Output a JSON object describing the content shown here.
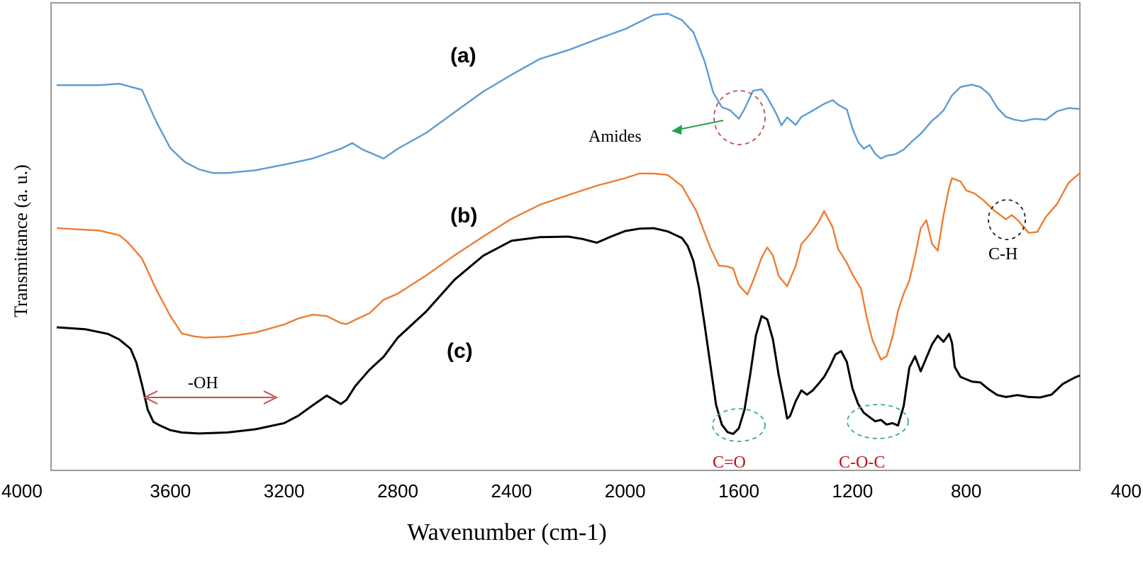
{
  "chart_data": {
    "type": "line",
    "xlabel": "Wavenumber (cm-1)",
    "ylabel": "Transmittance (a. u.)",
    "xlim": [
      4000,
      400
    ],
    "x_reversed": true,
    "y_units": "arbitrary, curves vertically offset",
    "ylim": [
      0,
      100
    ],
    "grid": false,
    "x_ticks": [
      "4000",
      "3600",
      "3200",
      "2800",
      "2400",
      "2000",
      "1600",
      "1200",
      "800",
      "400"
    ],
    "series": [
      {
        "name": "(a)",
        "color": "#5B9BD5",
        "points": [
          [
            4000,
            82.4
          ],
          [
            3850,
            82.4
          ],
          [
            3780,
            82.7
          ],
          [
            3700,
            81.4
          ],
          [
            3680,
            78.6
          ],
          [
            3650,
            74.6
          ],
          [
            3600,
            68.9
          ],
          [
            3550,
            66.0
          ],
          [
            3500,
            64.4
          ],
          [
            3450,
            63.6
          ],
          [
            3400,
            63.6
          ],
          [
            3300,
            64.2
          ],
          [
            3200,
            65.4
          ],
          [
            3100,
            66.7
          ],
          [
            3000,
            68.8
          ],
          [
            2960,
            70.0
          ],
          [
            2920,
            68.5
          ],
          [
            2880,
            67.5
          ],
          [
            2850,
            66.7
          ],
          [
            2800,
            68.8
          ],
          [
            2700,
            72.2
          ],
          [
            2600,
            76.6
          ],
          [
            2500,
            81.0
          ],
          [
            2400,
            84.6
          ],
          [
            2300,
            88.0
          ],
          [
            2200,
            89.9
          ],
          [
            2100,
            92.2
          ],
          [
            2000,
            94.4
          ],
          [
            1950,
            95.9
          ],
          [
            1900,
            97.4
          ],
          [
            1850,
            97.7
          ],
          [
            1800,
            96.3
          ],
          [
            1760,
            93.7
          ],
          [
            1720,
            87.4
          ],
          [
            1690,
            80.8
          ],
          [
            1660,
            77.7
          ],
          [
            1630,
            77.0
          ],
          [
            1600,
            75.2
          ],
          [
            1580,
            77.3
          ],
          [
            1550,
            81.2
          ],
          [
            1520,
            81.5
          ],
          [
            1500,
            79.8
          ],
          [
            1470,
            76.5
          ],
          [
            1450,
            73.8
          ],
          [
            1430,
            75.5
          ],
          [
            1400,
            73.9
          ],
          [
            1380,
            75.6
          ],
          [
            1350,
            76.6
          ],
          [
            1300,
            78.4
          ],
          [
            1270,
            79.2
          ],
          [
            1250,
            78.2
          ],
          [
            1220,
            77.2
          ],
          [
            1200,
            73.1
          ],
          [
            1180,
            70.2
          ],
          [
            1160,
            68.8
          ],
          [
            1140,
            69.6
          ],
          [
            1120,
            67.7
          ],
          [
            1100,
            66.7
          ],
          [
            1080,
            67.3
          ],
          [
            1050,
            67.6
          ],
          [
            1020,
            68.6
          ],
          [
            990,
            70.4
          ],
          [
            960,
            72.0
          ],
          [
            920,
            74.8
          ],
          [
            900,
            75.8
          ],
          [
            880,
            77.0
          ],
          [
            850,
            80.2
          ],
          [
            820,
            82.0
          ],
          [
            780,
            82.5
          ],
          [
            750,
            82.0
          ],
          [
            720,
            80.5
          ],
          [
            690,
            77.5
          ],
          [
            660,
            75.6
          ],
          [
            630,
            75.0
          ],
          [
            600,
            74.7
          ],
          [
            560,
            75.2
          ],
          [
            520,
            75.0
          ],
          [
            480,
            76.8
          ],
          [
            440,
            77.5
          ],
          [
            400,
            77.3
          ]
        ]
      },
      {
        "name": "(b)",
        "color": "#ED7D31",
        "points": [
          [
            4000,
            51.8
          ],
          [
            3850,
            51.3
          ],
          [
            3780,
            50.3
          ],
          [
            3750,
            48.8
          ],
          [
            3700,
            45.3
          ],
          [
            3650,
            38.7
          ],
          [
            3600,
            33.0
          ],
          [
            3560,
            29.3
          ],
          [
            3520,
            28.7
          ],
          [
            3480,
            28.4
          ],
          [
            3400,
            28.6
          ],
          [
            3300,
            29.5
          ],
          [
            3200,
            31.2
          ],
          [
            3150,
            32.5
          ],
          [
            3100,
            33.3
          ],
          [
            3050,
            33.0
          ],
          [
            3000,
            31.5
          ],
          [
            2980,
            31.3
          ],
          [
            2950,
            32.2
          ],
          [
            2900,
            33.6
          ],
          [
            2850,
            36.5
          ],
          [
            2800,
            37.8
          ],
          [
            2700,
            41.7
          ],
          [
            2600,
            46.0
          ],
          [
            2500,
            50.0
          ],
          [
            2400,
            53.8
          ],
          [
            2300,
            56.8
          ],
          [
            2200,
            58.9
          ],
          [
            2100,
            60.9
          ],
          [
            2000,
            62.5
          ],
          [
            1950,
            63.5
          ],
          [
            1900,
            63.5
          ],
          [
            1850,
            63.2
          ],
          [
            1800,
            60.8
          ],
          [
            1750,
            55.5
          ],
          [
            1700,
            47.6
          ],
          [
            1670,
            43.8
          ],
          [
            1640,
            43.6
          ],
          [
            1620,
            43.2
          ],
          [
            1600,
            39.6
          ],
          [
            1570,
            37.6
          ],
          [
            1550,
            40.5
          ],
          [
            1520,
            45.5
          ],
          [
            1500,
            47.7
          ],
          [
            1480,
            46.0
          ],
          [
            1460,
            41.6
          ],
          [
            1430,
            39.4
          ],
          [
            1400,
            43.7
          ],
          [
            1380,
            48.4
          ],
          [
            1350,
            50.5
          ],
          [
            1320,
            53.0
          ],
          [
            1300,
            55.5
          ],
          [
            1270,
            52.0
          ],
          [
            1250,
            47.3
          ],
          [
            1220,
            44.4
          ],
          [
            1200,
            41.9
          ],
          [
            1170,
            38.8
          ],
          [
            1150,
            32.7
          ],
          [
            1130,
            27.9
          ],
          [
            1100,
            23.7
          ],
          [
            1080,
            24.4
          ],
          [
            1060,
            28.4
          ],
          [
            1040,
            34.1
          ],
          [
            1020,
            37.8
          ],
          [
            1000,
            40.6
          ],
          [
            980,
            45.8
          ],
          [
            960,
            51.8
          ],
          [
            940,
            53.5
          ],
          [
            920,
            48.4
          ],
          [
            900,
            47.0
          ],
          [
            880,
            54.5
          ],
          [
            860,
            60.5
          ],
          [
            850,
            62.5
          ],
          [
            820,
            61.8
          ],
          [
            800,
            59.9
          ],
          [
            770,
            59.2
          ],
          [
            740,
            57.8
          ],
          [
            700,
            55.5
          ],
          [
            680,
            54.6
          ],
          [
            660,
            53.7
          ],
          [
            640,
            54.6
          ],
          [
            620,
            53.6
          ],
          [
            580,
            50.8
          ],
          [
            550,
            51.0
          ],
          [
            520,
            54.2
          ],
          [
            480,
            57.0
          ],
          [
            440,
            61.5
          ],
          [
            400,
            63.6
          ]
        ]
      },
      {
        "name": "(c)",
        "color": "#000000",
        "points": [
          [
            4000,
            30.6
          ],
          [
            3900,
            30.2
          ],
          [
            3820,
            29.2
          ],
          [
            3780,
            28.0
          ],
          [
            3740,
            26.0
          ],
          [
            3720,
            23.1
          ],
          [
            3700,
            18.3
          ],
          [
            3680,
            13.0
          ],
          [
            3660,
            10.4
          ],
          [
            3640,
            9.7
          ],
          [
            3600,
            8.6
          ],
          [
            3560,
            8.1
          ],
          [
            3500,
            7.9
          ],
          [
            3400,
            8.1
          ],
          [
            3300,
            8.8
          ],
          [
            3200,
            10.1
          ],
          [
            3150,
            11.7
          ],
          [
            3100,
            13.9
          ],
          [
            3050,
            16.0
          ],
          [
            3000,
            14.2
          ],
          [
            2980,
            15.1
          ],
          [
            2950,
            18.0
          ],
          [
            2900,
            21.5
          ],
          [
            2850,
            24.3
          ],
          [
            2800,
            28.4
          ],
          [
            2700,
            34.0
          ],
          [
            2600,
            40.8
          ],
          [
            2500,
            45.9
          ],
          [
            2400,
            49.1
          ],
          [
            2300,
            49.9
          ],
          [
            2200,
            50.0
          ],
          [
            2150,
            49.5
          ],
          [
            2100,
            48.7
          ],
          [
            2050,
            50.0
          ],
          [
            2000,
            51.2
          ],
          [
            1950,
            51.7
          ],
          [
            1900,
            51.8
          ],
          [
            1850,
            51.1
          ],
          [
            1800,
            49.7
          ],
          [
            1780,
            48.0
          ],
          [
            1760,
            44.8
          ],
          [
            1740,
            39.0
          ],
          [
            1720,
            31.0
          ],
          [
            1700,
            22.5
          ],
          [
            1680,
            14.0
          ],
          [
            1660,
            9.8
          ],
          [
            1640,
            8.2
          ],
          [
            1620,
            7.8
          ],
          [
            1600,
            9.0
          ],
          [
            1580,
            13.0
          ],
          [
            1560,
            20.5
          ],
          [
            1540,
            28.9
          ],
          [
            1520,
            33.0
          ],
          [
            1500,
            32.3
          ],
          [
            1480,
            28.0
          ],
          [
            1460,
            20.5
          ],
          [
            1440,
            14.5
          ],
          [
            1430,
            11.1
          ],
          [
            1420,
            11.6
          ],
          [
            1400,
            14.8
          ],
          [
            1380,
            17.1
          ],
          [
            1360,
            16.2
          ],
          [
            1340,
            17.1
          ],
          [
            1320,
            18.5
          ],
          [
            1300,
            20.0
          ],
          [
            1280,
            22.2
          ],
          [
            1260,
            24.8
          ],
          [
            1240,
            25.5
          ],
          [
            1220,
            23.2
          ],
          [
            1200,
            17.5
          ],
          [
            1180,
            14.2
          ],
          [
            1160,
            12.3
          ],
          [
            1140,
            11.4
          ],
          [
            1120,
            10.5
          ],
          [
            1100,
            10.8
          ],
          [
            1080,
            9.8
          ],
          [
            1060,
            10.1
          ],
          [
            1040,
            9.6
          ],
          [
            1020,
            13.8
          ],
          [
            1000,
            22.0
          ],
          [
            980,
            24.4
          ],
          [
            960,
            21.2
          ],
          [
            940,
            24.1
          ],
          [
            920,
            27.0
          ],
          [
            900,
            28.8
          ],
          [
            880,
            27.5
          ],
          [
            860,
            29.2
          ],
          [
            850,
            27.3
          ],
          [
            840,
            22.1
          ],
          [
            820,
            20.0
          ],
          [
            780,
            19.0
          ],
          [
            750,
            18.8
          ],
          [
            720,
            17.3
          ],
          [
            690,
            16.1
          ],
          [
            660,
            15.7
          ],
          [
            620,
            16.1
          ],
          [
            580,
            15.7
          ],
          [
            540,
            15.6
          ],
          [
            500,
            16.2
          ],
          [
            460,
            18.5
          ],
          [
            420,
            19.8
          ],
          [
            400,
            20.3
          ]
        ]
      }
    ],
    "annotations": {
      "amides": "Amides",
      "ch": "C-H",
      "oh": "-OH",
      "co": "C=O",
      "coc": "C-O-C"
    },
    "colors": {
      "amides_circle": "#C0504D",
      "amides_arrow": "#22A24A",
      "ch_circle": "#222222",
      "oh_arrow": "#C0504D",
      "green_ellipse": "#3CB371",
      "red_text": "#C0121B"
    }
  }
}
